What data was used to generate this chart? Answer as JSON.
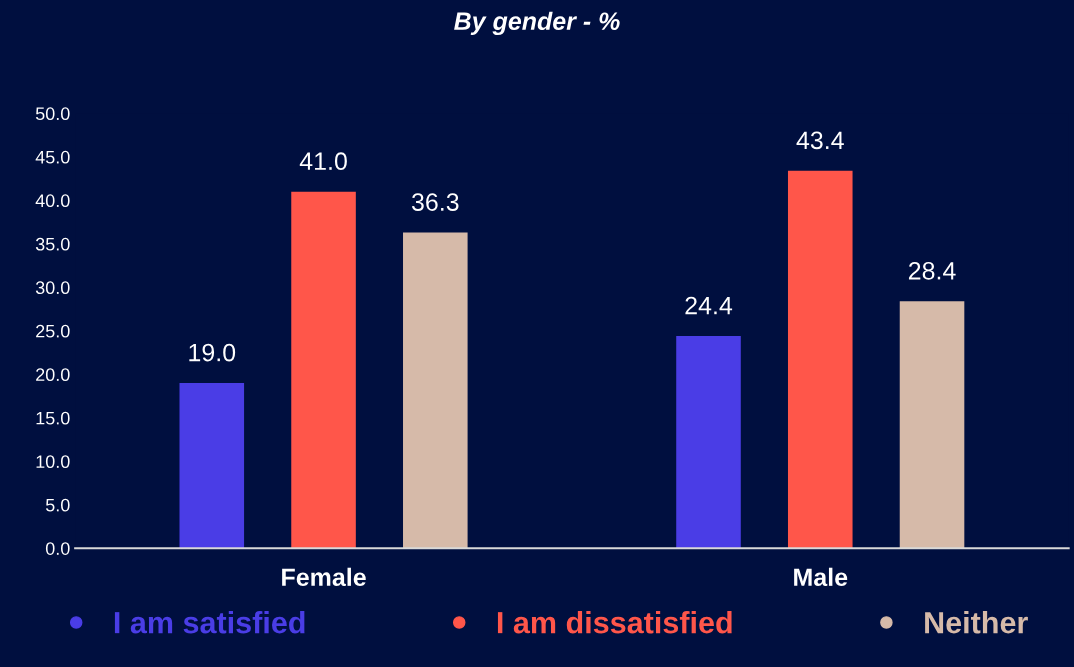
{
  "chart_data": {
    "type": "bar",
    "title": "By gender - %",
    "categories": [
      "Female",
      "Male"
    ],
    "series": [
      {
        "name": "I am satisfied",
        "color": "#4a3de6",
        "values": [
          19.0,
          24.4
        ],
        "value_labels": [
          "19.0",
          "24.4"
        ]
      },
      {
        "name": "I am dissatisfied",
        "color": "#ff564a",
        "values": [
          41.0,
          43.4
        ],
        "value_labels": [
          "41.0",
          "43.4"
        ]
      },
      {
        "name": "Neither",
        "color": "#d6baa9",
        "values": [
          36.3,
          28.4
        ],
        "value_labels": [
          "36.3",
          "28.4"
        ]
      }
    ],
    "ylim": [
      0,
      50
    ],
    "yticks": [
      {
        "value": 0,
        "label": "0.0"
      },
      {
        "value": 5,
        "label": "5.0"
      },
      {
        "value": 10,
        "label": "10.0"
      },
      {
        "value": 15,
        "label": "15.0"
      },
      {
        "value": 20,
        "label": "20.0"
      },
      {
        "value": 25,
        "label": "25.0"
      },
      {
        "value": 30,
        "label": "30.0"
      },
      {
        "value": 35,
        "label": "35.0"
      },
      {
        "value": 40,
        "label": "40.0"
      },
      {
        "value": 45,
        "label": "45.0"
      },
      {
        "value": 50,
        "label": "50.0"
      }
    ],
    "grid": false,
    "legend": "bottom"
  }
}
